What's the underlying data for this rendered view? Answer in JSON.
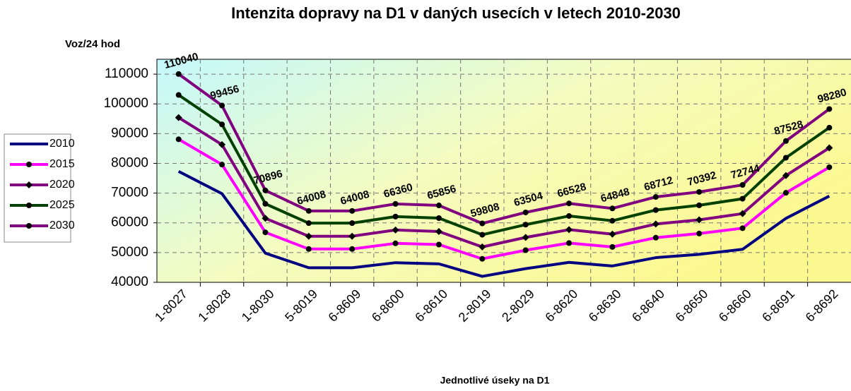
{
  "chart_data": {
    "type": "line",
    "title": "Intenzita dopravy na D1 v daných usecích v letech 2010-2030",
    "y_label": "Voz/24 hod",
    "x_label": "Jednotlivé úseky na D1",
    "categories": [
      "1-8027",
      "1-8028",
      "1-8030",
      "5-8019",
      "6-8609",
      "6-8600",
      "6-8610",
      "2-8019",
      "2-8029",
      "6-8620",
      "6-8630",
      "6-8640",
      "6-8650",
      "6-8660",
      "6-8691",
      "6-8692"
    ],
    "series": [
      {
        "name": "2010",
        "color": "#000080",
        "marker": "none",
        "values": [
          77300,
          69800,
          49800,
          44900,
          44900,
          46600,
          46200,
          42000,
          44600,
          46700,
          45500,
          48300,
          49400,
          51100,
          61500,
          69000
        ]
      },
      {
        "name": "2015",
        "color": "#ff00ff",
        "marker": "circle",
        "values": [
          88100,
          79600,
          56800,
          51200,
          51200,
          53100,
          52700,
          47900,
          50800,
          53200,
          51900,
          55000,
          56400,
          58200,
          70100,
          78700
        ]
      },
      {
        "name": "2020",
        "color": "#800080",
        "marker": "diamond",
        "values": [
          95400,
          86300,
          61500,
          55500,
          55500,
          57600,
          57100,
          51900,
          55100,
          57700,
          56200,
          59600,
          61000,
          63100,
          75900,
          85200
        ]
      },
      {
        "name": "2025",
        "color": "#004000",
        "marker": "circle",
        "values": [
          103000,
          93100,
          66400,
          59900,
          59900,
          62100,
          61600,
          56000,
          59400,
          62300,
          60700,
          64300,
          65900,
          68100,
          81900,
          92000
        ]
      },
      {
        "name": "2030",
        "color": "#800080",
        "marker": "circle",
        "data_labels": true,
        "values": [
          110040,
          99456,
          70896,
          64008,
          64008,
          66360,
          65856,
          59808,
          63504,
          66528,
          64848,
          68712,
          70392,
          72744,
          87528,
          98280
        ]
      }
    ],
    "ylim": [
      40000,
      115000
    ],
    "yticks": [
      40000,
      50000,
      60000,
      70000,
      80000,
      90000,
      100000,
      110000
    ],
    "grid": true,
    "legend": "left"
  }
}
